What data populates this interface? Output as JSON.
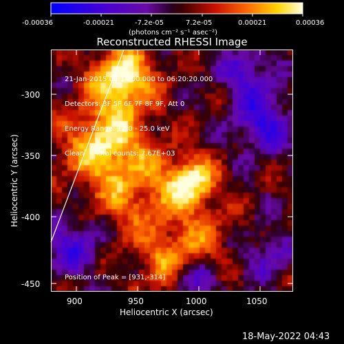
{
  "colorbar": {
    "tick_labels": [
      "-0.00036",
      "-0.00021",
      "-7.2e-05",
      "7.2e-05",
      "0.00021",
      "0.00036"
    ],
    "units": "(photons cm⁻² s⁻¹ asec⁻²)"
  },
  "plot": {
    "title": "Reconstructed RHESSI Image",
    "info_lines": [
      "21-Jan-2015 06:14:00.000 to 06:20:20.000",
      "Detectors: 3F 5F 6F 7F 8F 9F, Att 0",
      "Energy Range: 12.0 - 25.0 keV",
      "Clean     Total counts: 7.67E+03"
    ],
    "peak_label": "Position of Peak = [931,-314]",
    "xlabel": "Heliocentric X (arcsec)",
    "ylabel": "Heliocentric Y (arcsec)",
    "x_ticks": [
      "900",
      "950",
      "1000",
      "1050"
    ],
    "y_ticks": [
      "-300",
      "-350",
      "-400",
      "-450"
    ]
  },
  "footer": {
    "date": "18-May-2022 04:43"
  }
}
